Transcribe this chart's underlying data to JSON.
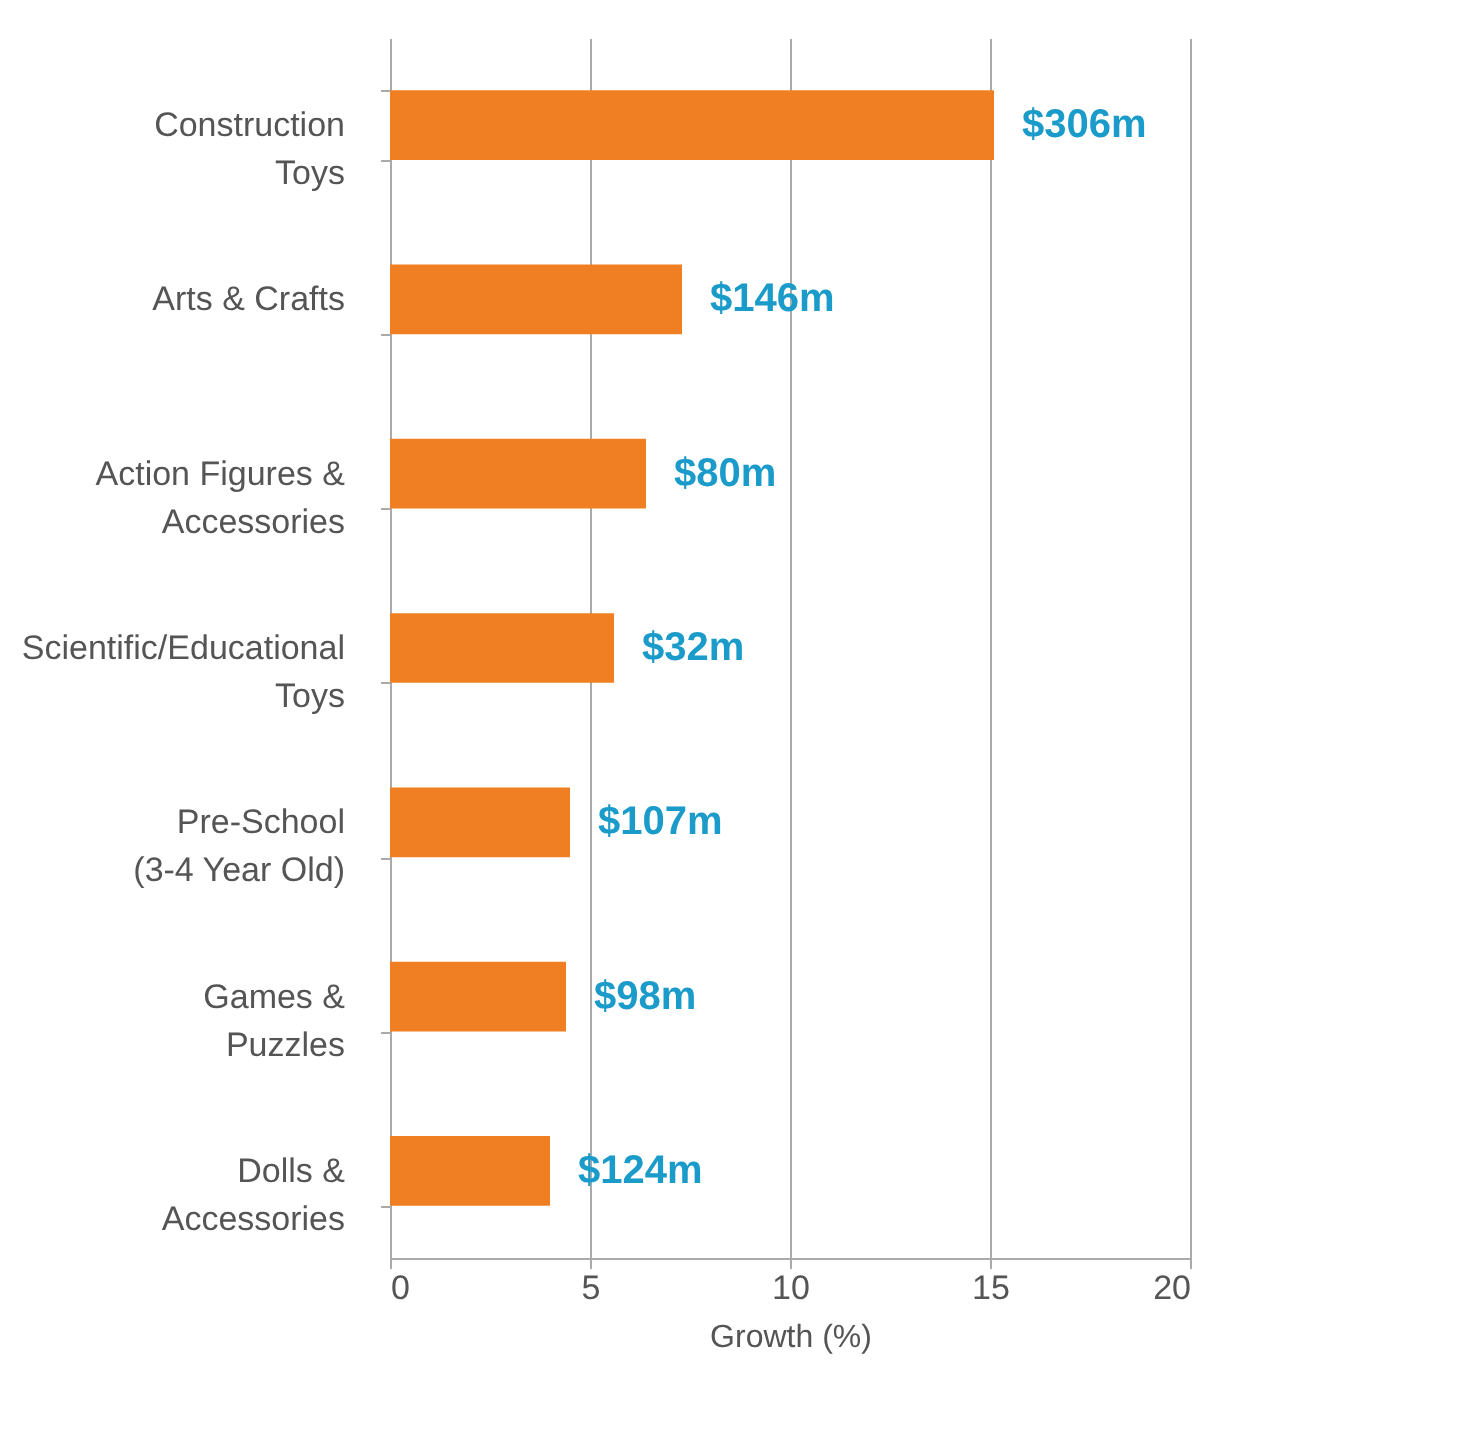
{
  "chart_data": {
    "type": "bar",
    "orientation": "horizontal",
    "xlabel": "Growth (%)",
    "categories": [
      "Construction\nToys",
      "Arts & Crafts",
      "Action Figures &\nAccessories",
      "Scientific/Educational\nToys",
      "Pre-School\n(3-4 Year Old)",
      "Games &\nPuzzles",
      "Dolls &\nAccessories"
    ],
    "values": [
      15.1,
      7.3,
      6.4,
      5.6,
      4.5,
      4.4,
      4.0
    ],
    "color": "#f07f23",
    "xlim": [
      0,
      20
    ],
    "xticks": [
      0,
      5,
      10,
      15,
      20
    ],
    "grid": "x",
    "annotations": [
      "$306m",
      "$146m",
      "$80m",
      "$32m",
      "$107m",
      "$98m",
      "$124m"
    ]
  }
}
